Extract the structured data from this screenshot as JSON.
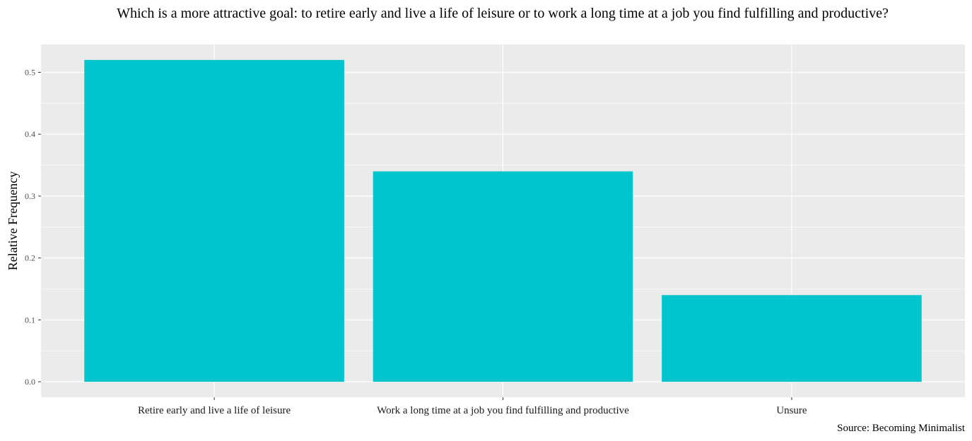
{
  "chart_data": {
    "type": "bar",
    "title": "Which is a more attractive goal: to retire early and live a life of leisure or to work a long time at a job you find fulfilling and productive?",
    "categories": [
      "Retire early and live a life of leisure",
      "Work a long time at a job you find fulfilling and productive",
      "Unsure"
    ],
    "values": [
      0.52,
      0.34,
      0.14
    ],
    "xlabel": "",
    "ylabel": "Relative Frequency",
    "ylim": [
      -0.025,
      0.545
    ],
    "yticks": [
      "0.0",
      "0.1",
      "0.2",
      "0.3",
      "0.4",
      "0.5"
    ],
    "grid": true,
    "caption": "Source: Becoming Minimalist",
    "colors": {
      "bar": "#00C5CD",
      "panel": "#EBEBEB",
      "grid_major": "#FFFFFF",
      "grid_minor": "#F5F5F5"
    }
  }
}
